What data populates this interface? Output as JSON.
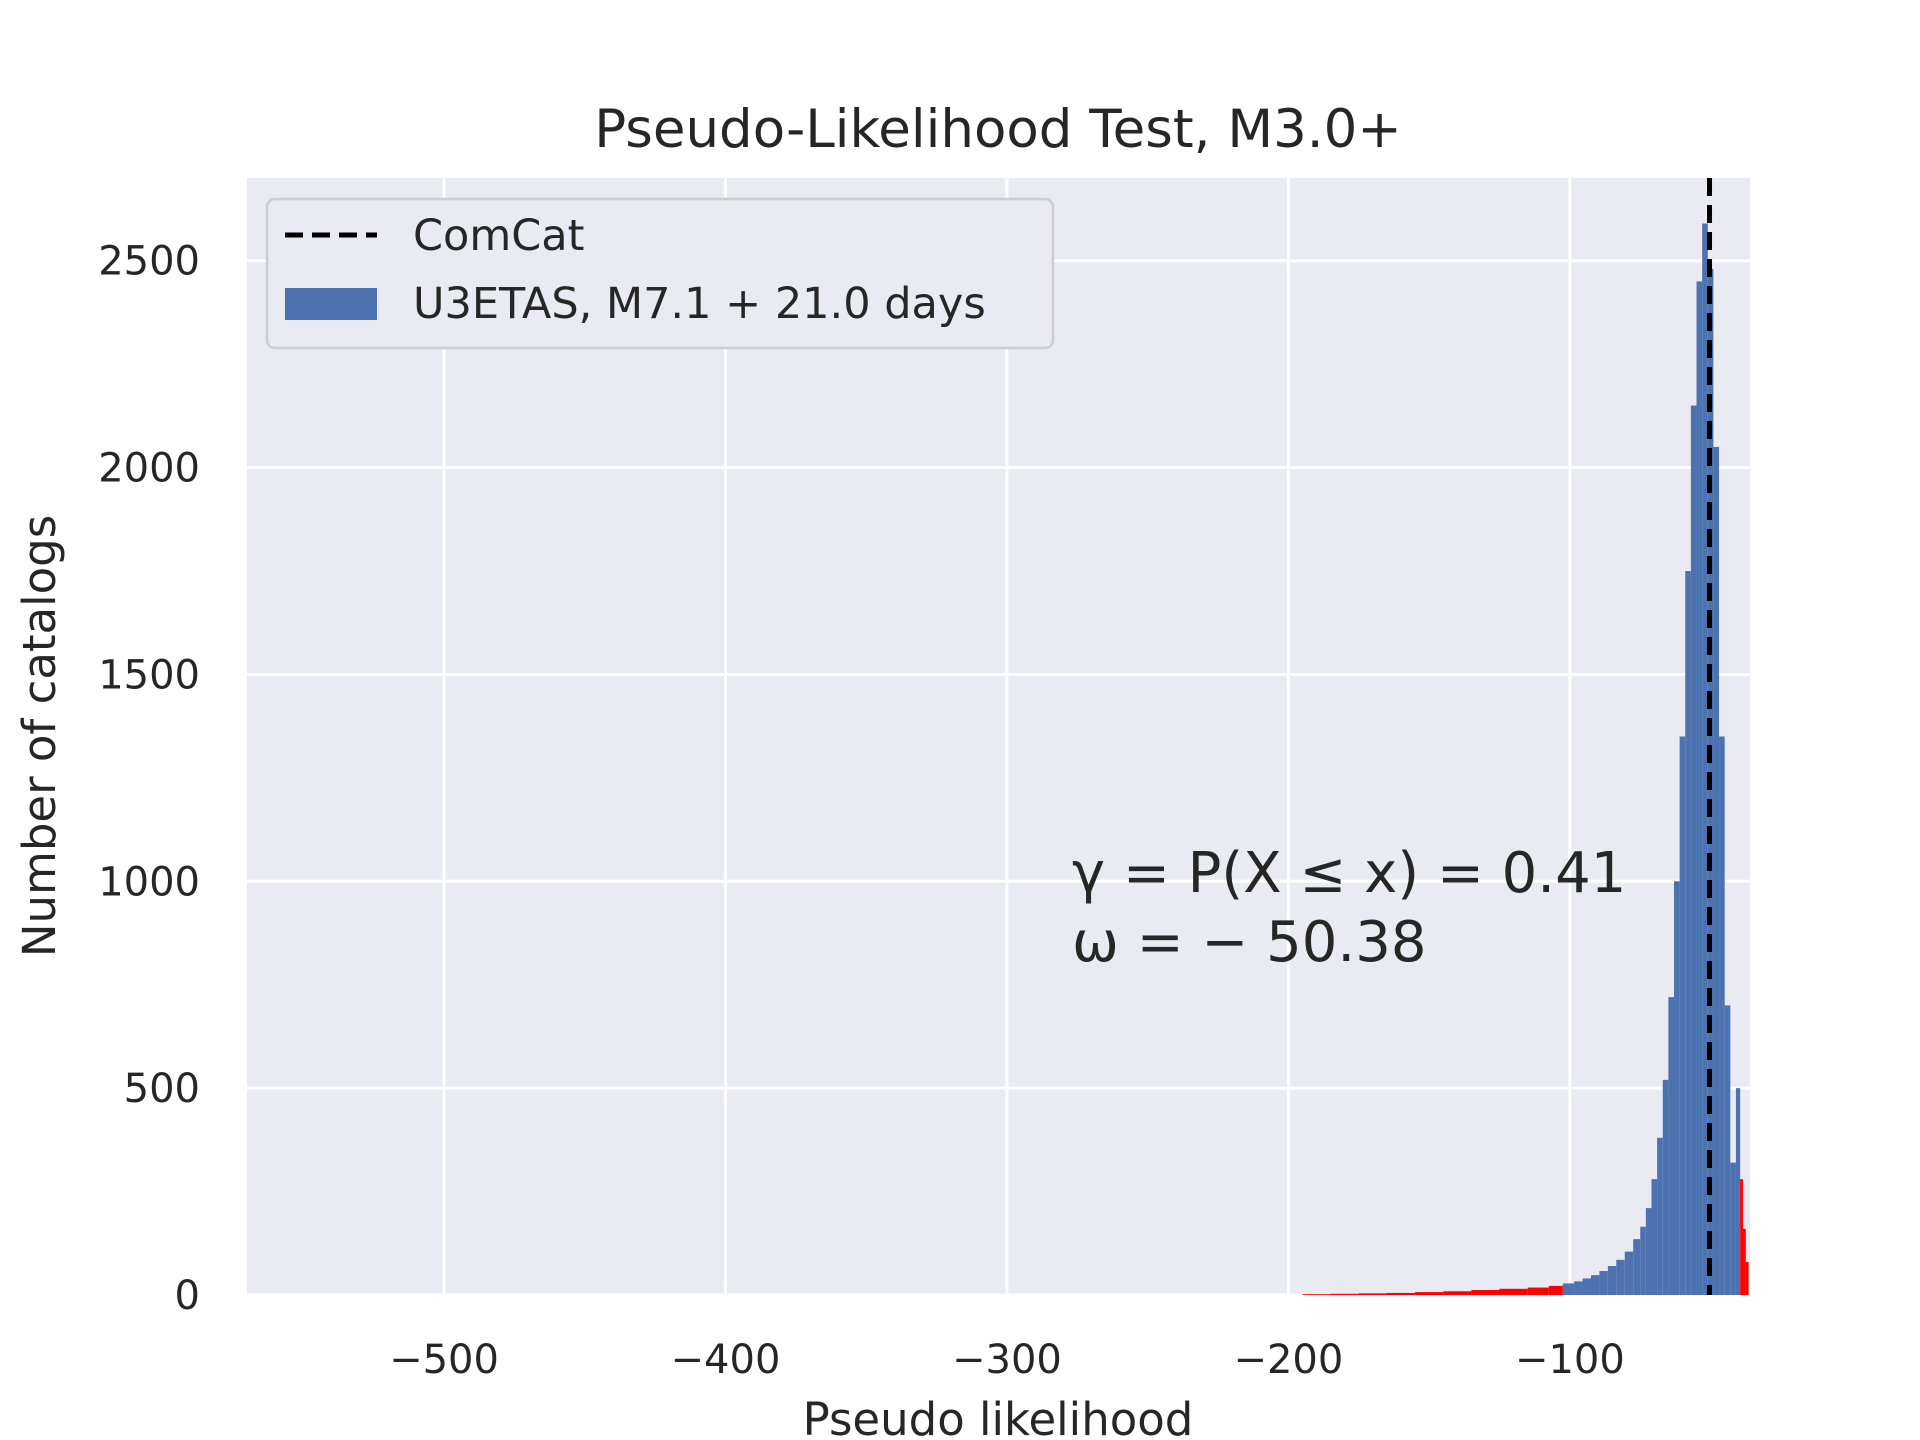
{
  "chart_data": {
    "type": "bar",
    "title": "Pseudo-Likelihood Test, M3.0+",
    "xlabel": "Pseudo likelihood",
    "ylabel": "Number of catalogs",
    "xlim": [
      -570,
      -36
    ],
    "ylim": [
      0,
      2700
    ],
    "xticks": [
      -500,
      -400,
      -300,
      -200,
      -100
    ],
    "xtick_labels": [
      "−500",
      "−400",
      "−300",
      "−200",
      "−100"
    ],
    "yticks": [
      0,
      500,
      1000,
      1500,
      2000,
      2500
    ],
    "ytick_labels": [
      "0",
      "500",
      "1000",
      "1500",
      "2000",
      "2500"
    ],
    "grid": true,
    "legend_position": "top-left",
    "colors": {
      "background": "#eaeaf2",
      "grid": "#ffffff",
      "histogram": "#4c72b0",
      "tails": "#ff0000",
      "observed_line": "#000000",
      "text": "#262626"
    },
    "series": [
      {
        "name": "U3ETAS, M7.1 + 21.0 days",
        "kind": "histogram",
        "x": [
          -190,
          -180,
          -170,
          -160,
          -150,
          -140,
          -130,
          -120,
          -110,
          -105,
          -100,
          -97,
          -94,
          -91,
          -88,
          -85,
          -82,
          -79,
          -76,
          -74,
          -72,
          -70,
          -68,
          -66,
          -64,
          -62,
          -60,
          -58,
          -56,
          -54,
          -52,
          -50,
          -48,
          -46,
          -44,
          -42,
          -40,
          -39,
          -38,
          -37
        ],
        "values": [
          2,
          3,
          4,
          5,
          7,
          9,
          12,
          15,
          18,
          22,
          28,
          33,
          40,
          48,
          58,
          70,
          85,
          105,
          135,
          165,
          210,
          280,
          380,
          520,
          720,
          1000,
          1350,
          1750,
          2150,
          2450,
          2590,
          2480,
          2050,
          1350,
          700,
          320,
          500,
          280,
          160,
          80
        ]
      },
      {
        "name": "ComCat",
        "kind": "vertical-line",
        "x": -50.38
      }
    ],
    "tail_shading": {
      "lower_below": -100,
      "upper_above": -40
    },
    "annotations": [
      "γ = P(X ≤ x) = 0.41",
      "ω = − 50.38"
    ]
  }
}
